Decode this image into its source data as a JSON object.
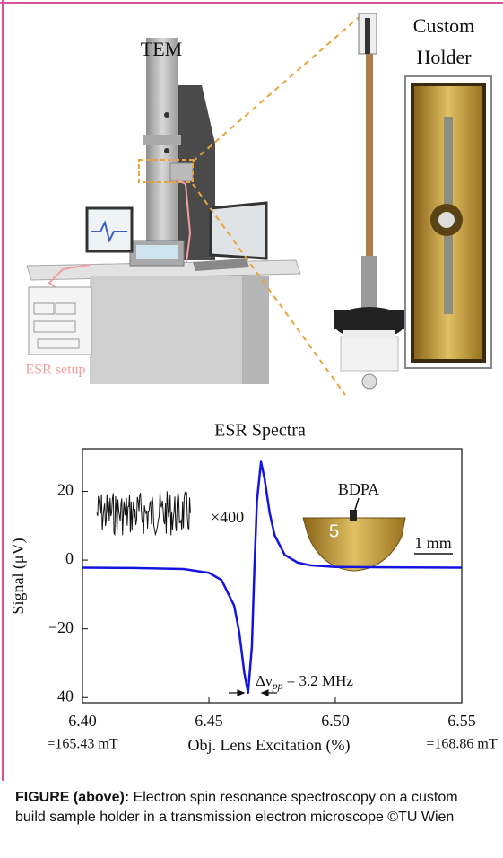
{
  "illustration": {
    "tem_label": "TEM",
    "holder_label": [
      "Custom",
      "Holder"
    ],
    "esr_label": "ESR setup"
  },
  "chart_data": {
    "type": "line",
    "title": "ESR Spectra",
    "x_label": "Obj. Lens Excitation (%)",
    "y_label": "Signal (μV)",
    "xlim": [
      6.4,
      6.55
    ],
    "ylim": [
      -41.5,
      32.4
    ],
    "xticks": [
      {
        "value": 6.4,
        "label": "6.40"
      },
      6.45,
      {
        "value": 6.5,
        "label": "6.50"
      },
      6.55
    ],
    "yticks": [
      {
        "value": -40,
        "label": "−40"
      },
      {
        "value": -20,
        "label": "−20"
      },
      0,
      20
    ],
    "x_tick_sublabels": [
      "=165.43 mT",
      "=168.86 mT"
    ],
    "annotations": [
      "×400",
      "BDPA",
      "1 mm"
    ],
    "linewidth_label": {
      "symbol": "Δν",
      "subscript": "pp",
      "text": "= 3.2 MHz"
    },
    "x": [
      6.4,
      6.42,
      6.44,
      6.45,
      6.455,
      6.46,
      6.462,
      6.464,
      6.4655,
      6.467,
      6.468,
      6.469,
      6.4706,
      6.472,
      6.474,
      6.476,
      6.48,
      6.485,
      6.49,
      6.5,
      6.52,
      6.55
    ],
    "series": [
      {
        "color": "#1414e0",
        "values": [
          -2.2,
          -2.3,
          -2.6,
          -3.7,
          -5.8,
          -13.3,
          -21.0,
          -32.8,
          -38.6,
          -25.1,
          -2.2,
          17.2,
          28.6,
          23.7,
          13.8,
          7.2,
          1.5,
          -0.7,
          -1.5,
          -2.0,
          -2.1,
          -2.2
        ]
      }
    ]
  },
  "caption": {
    "label": "FIGURE (above):",
    "text": "Electron spin resonance spectroscopy on a custom build sample holder in a transmission electron microscope ©TU Wien"
  }
}
